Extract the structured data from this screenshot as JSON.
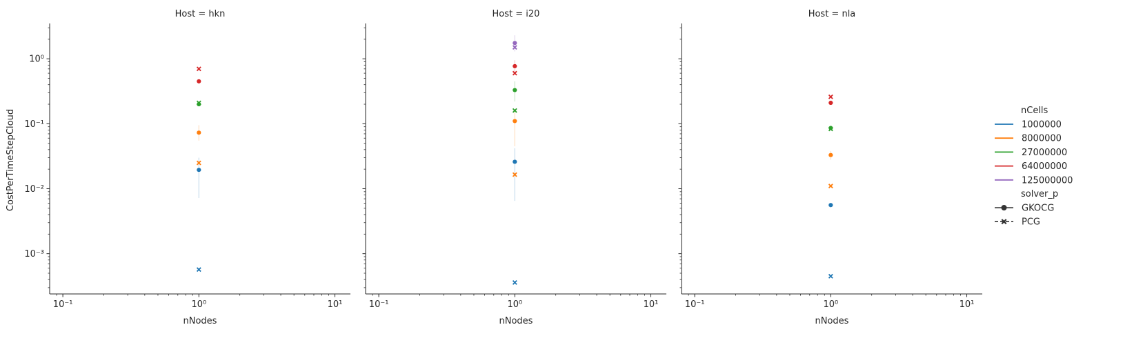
{
  "colors": {
    "n1000000": "#1f77b4",
    "n8000000": "#ff7f0e",
    "n27000000": "#2ca02c",
    "n64000000": "#d62728",
    "n125000000": "#9467bd",
    "axis": "#262626"
  },
  "chart_data": {
    "type": "scatter",
    "x_scale": "log",
    "y_scale": "log",
    "xlim": [
      0.08,
      13
    ],
    "ylim": [
      0.00024,
      3.5
    ],
    "xlabel": "nNodes",
    "ylabel": "CostPerTimeStepCloud",
    "x_ticks": [
      {
        "value": 0.1,
        "label": "10⁻¹"
      },
      {
        "value": 1,
        "label": "10⁰"
      },
      {
        "value": 10,
        "label": "10¹"
      }
    ],
    "y_ticks": [
      {
        "value": 0.001,
        "label": "10⁻³"
      },
      {
        "value": 0.01,
        "label": "10⁻²"
      },
      {
        "value": 0.1,
        "label": "10⁻¹"
      },
      {
        "value": 1,
        "label": "10⁰"
      }
    ],
    "grid": false,
    "legend": {
      "placement": "right",
      "hue_title": "nCells",
      "hue_entries": [
        {
          "label": "1000000",
          "color": "#1f77b4"
        },
        {
          "label": "8000000",
          "color": "#ff7f0e"
        },
        {
          "label": "27000000",
          "color": "#2ca02c"
        },
        {
          "label": "64000000",
          "color": "#d62728"
        },
        {
          "label": "125000000",
          "color": "#9467bd"
        }
      ],
      "style_title": "solver_p",
      "style_entries": [
        {
          "label": "GKOCG",
          "marker": "circle"
        },
        {
          "label": "PCG",
          "marker": "x"
        }
      ]
    },
    "panels": [
      {
        "title": "Host = hkn",
        "points": [
          {
            "nCells": "1000000",
            "solver_p": "GKOCG",
            "x": 1,
            "y": 0.0195,
            "ci": [
              0.0072,
              0.03
            ]
          },
          {
            "nCells": "1000000",
            "solver_p": "PCG",
            "x": 1,
            "y": 0.00057
          },
          {
            "nCells": "8000000",
            "solver_p": "GKOCG",
            "x": 1,
            "y": 0.073,
            "ci": [
              0.055,
              0.095
            ]
          },
          {
            "nCells": "8000000",
            "solver_p": "PCG",
            "x": 1,
            "y": 0.025
          },
          {
            "nCells": "27000000",
            "solver_p": "GKOCG",
            "x": 1,
            "y": 0.2
          },
          {
            "nCells": "27000000",
            "solver_p": "PCG",
            "x": 1,
            "y": 0.21
          },
          {
            "nCells": "64000000",
            "solver_p": "GKOCG",
            "x": 1,
            "y": 0.45
          },
          {
            "nCells": "64000000",
            "solver_p": "PCG",
            "x": 1,
            "y": 0.7
          }
        ]
      },
      {
        "title": "Host = i20",
        "points": [
          {
            "nCells": "1000000",
            "solver_p": "GKOCG",
            "x": 1,
            "y": 0.026,
            "ci": [
              0.0065,
              0.042
            ]
          },
          {
            "nCells": "1000000",
            "solver_p": "PCG",
            "x": 1,
            "y": 0.00036
          },
          {
            "nCells": "8000000",
            "solver_p": "GKOCG",
            "x": 1,
            "y": 0.11,
            "ci": [
              0.045,
              0.15
            ]
          },
          {
            "nCells": "8000000",
            "solver_p": "PCG",
            "x": 1,
            "y": 0.0165
          },
          {
            "nCells": "27000000",
            "solver_p": "GKOCG",
            "x": 1,
            "y": 0.33,
            "ci": [
              0.22,
              0.45
            ]
          },
          {
            "nCells": "27000000",
            "solver_p": "PCG",
            "x": 1,
            "y": 0.16
          },
          {
            "nCells": "64000000",
            "solver_p": "GKOCG",
            "x": 1,
            "y": 0.77,
            "ci": [
              0.6,
              0.95
            ]
          },
          {
            "nCells": "64000000",
            "solver_p": "PCG",
            "x": 1,
            "y": 0.6
          },
          {
            "nCells": "125000000",
            "solver_p": "GKOCG",
            "x": 1,
            "y": 1.75,
            "ci": [
              1.3,
              2.3
            ]
          },
          {
            "nCells": "125000000",
            "solver_p": "PCG",
            "x": 1,
            "y": 1.5
          }
        ]
      },
      {
        "title": "Host = nla",
        "points": [
          {
            "nCells": "1000000",
            "solver_p": "GKOCG",
            "x": 1,
            "y": 0.0056
          },
          {
            "nCells": "1000000",
            "solver_p": "PCG",
            "x": 1,
            "y": 0.00045
          },
          {
            "nCells": "8000000",
            "solver_p": "GKOCG",
            "x": 1,
            "y": 0.033,
            "ci": [
              0.028,
              0.038
            ]
          },
          {
            "nCells": "8000000",
            "solver_p": "PCG",
            "x": 1,
            "y": 0.011
          },
          {
            "nCells": "27000000",
            "solver_p": "GKOCG",
            "x": 1,
            "y": 0.086
          },
          {
            "nCells": "27000000",
            "solver_p": "PCG",
            "x": 1,
            "y": 0.083
          },
          {
            "nCells": "64000000",
            "solver_p": "GKOCG",
            "x": 1,
            "y": 0.21
          },
          {
            "nCells": "64000000",
            "solver_p": "PCG",
            "x": 1,
            "y": 0.26
          }
        ]
      }
    ]
  }
}
